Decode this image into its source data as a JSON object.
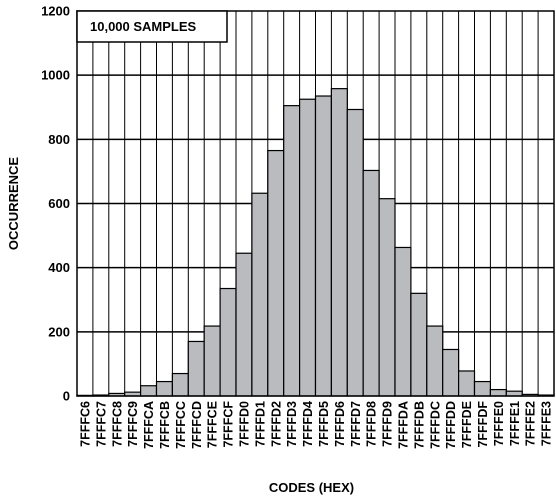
{
  "chart_data": {
    "type": "bar",
    "title": "",
    "annotation": "10,000 SAMPLES",
    "xlabel": "CODES (HEX)",
    "ylabel": "OCCURRENCE",
    "ylim": [
      0,
      1200
    ],
    "yticks": [
      0,
      200,
      400,
      600,
      800,
      1000,
      1200
    ],
    "grid": true,
    "colors": {
      "bar": "#b9bbbe",
      "edge": "#000000",
      "grid": "#000000"
    },
    "categories": [
      "7FFFC6",
      "7FFFC7",
      "7FFFC8",
      "7FFFC9",
      "7FFFCA",
      "7FFFCB",
      "7FFFCC",
      "7FFFCD",
      "7FFFCE",
      "7FFFCF",
      "7FFFD0",
      "7FFFD1",
      "7FFFD2",
      "7FFFD3",
      "7FFFD4",
      "7FFFD5",
      "7FFFD6",
      "7FFFD7",
      "7FFFD8",
      "7FFFD9",
      "7FFFDA",
      "7FFFDB",
      "7FFFDC",
      "7FFFDD",
      "7FFFDE",
      "7FFFDF",
      "7FFFE0",
      "7FFFE1",
      "7FFFE2",
      "7FFFE3"
    ],
    "values": [
      2,
      3,
      8,
      12,
      32,
      45,
      70,
      170,
      218,
      335,
      445,
      632,
      765,
      905,
      925,
      935,
      958,
      893,
      703,
      615,
      463,
      320,
      218,
      145,
      78,
      45,
      20,
      15,
      5,
      3
    ]
  }
}
